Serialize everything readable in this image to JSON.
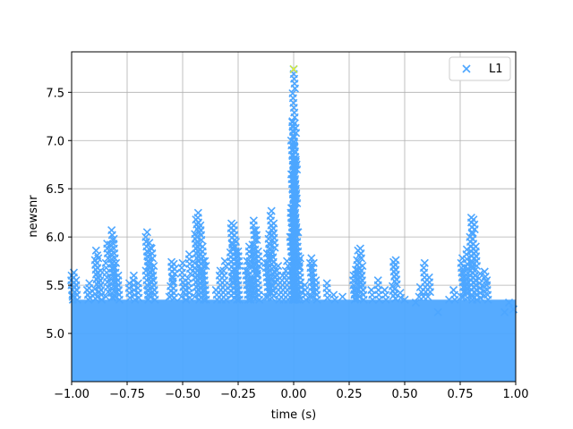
{
  "chart_data": {
    "type": "scatter",
    "xlabel": "time (s)",
    "ylabel": "newsnr",
    "xlim": [
      -1.0,
      1.0
    ],
    "ylim": [
      4.5,
      7.92
    ],
    "xticks": [
      "−1.00",
      "−0.75",
      "−0.50",
      "−0.25",
      "0.00",
      "0.25",
      "0.50",
      "0.75",
      "1.00"
    ],
    "xtick_values": [
      -1.0,
      -0.75,
      -0.5,
      -0.25,
      0.0,
      0.25,
      0.5,
      0.75,
      1.0
    ],
    "yticks": [
      "5.0",
      "5.5",
      "6.0",
      "6.5",
      "7.0",
      "7.5"
    ],
    "ytick_values": [
      5.0,
      5.5,
      6.0,
      6.5,
      7.0,
      7.5
    ],
    "grid": true,
    "legend": {
      "position": "top-right",
      "entries": [
        "L1"
      ]
    },
    "colors": {
      "series": "#4da6ff",
      "highlight": "#ffff00"
    },
    "series": [
      {
        "name": "L1",
        "marker": "x",
        "band": {
          "x_range": [
            -1.0,
            1.0
          ],
          "y_range": [
            4.5,
            5.35
          ]
        },
        "values": [
          [
            -1.0,
            5.6
          ],
          [
            -0.99,
            5.63
          ],
          [
            -0.98,
            5.55
          ],
          [
            -0.93,
            5.45
          ],
          [
            -0.92,
            5.52
          ],
          [
            -0.89,
            5.86
          ],
          [
            -0.88,
            5.78
          ],
          [
            -0.87,
            5.65
          ],
          [
            -0.84,
            5.93
          ],
          [
            -0.82,
            6.07
          ],
          [
            -0.81,
            5.98
          ],
          [
            -0.8,
            5.73
          ],
          [
            -0.79,
            5.6
          ],
          [
            -0.74,
            5.52
          ],
          [
            -0.72,
            5.6
          ],
          [
            -0.7,
            5.52
          ],
          [
            -0.66,
            6.05
          ],
          [
            -0.65,
            5.94
          ],
          [
            -0.64,
            5.88
          ],
          [
            -0.63,
            5.7
          ],
          [
            -0.56,
            5.38
          ],
          [
            -0.55,
            5.74
          ],
          [
            -0.54,
            5.72
          ],
          [
            -0.5,
            5.73
          ],
          [
            -0.49,
            5.5
          ],
          [
            -0.47,
            5.82
          ],
          [
            -0.44,
            6.18
          ],
          [
            -0.43,
            6.25
          ],
          [
            -0.42,
            6.12
          ],
          [
            -0.41,
            5.9
          ],
          [
            -0.4,
            5.75
          ],
          [
            -0.35,
            5.45
          ],
          [
            -0.33,
            5.65
          ],
          [
            -0.31,
            5.75
          ],
          [
            -0.28,
            6.14
          ],
          [
            -0.27,
            6.12
          ],
          [
            -0.26,
            5.95
          ],
          [
            -0.25,
            5.85
          ],
          [
            -0.21,
            5.75
          ],
          [
            -0.2,
            5.9
          ],
          [
            -0.18,
            6.17
          ],
          [
            -0.17,
            6.07
          ],
          [
            -0.16,
            5.85
          ],
          [
            -0.12,
            5.83
          ],
          [
            -0.11,
            6.03
          ],
          [
            -0.1,
            6.27
          ],
          [
            -0.09,
            6.14
          ],
          [
            -0.07,
            5.7
          ],
          [
            -0.05,
            5.6
          ],
          [
            -0.03,
            5.75
          ],
          [
            -0.01,
            6.3
          ],
          [
            0.0,
            6.95
          ],
          [
            0.005,
            7.18
          ],
          [
            -0.005,
            7.2
          ],
          [
            0.01,
            6.8
          ],
          [
            0.0,
            6.55
          ],
          [
            0.02,
            6.05
          ],
          [
            0.03,
            5.78
          ],
          [
            0.05,
            5.5
          ],
          [
            0.08,
            5.78
          ],
          [
            0.09,
            5.73
          ],
          [
            0.1,
            5.55
          ],
          [
            0.15,
            5.52
          ],
          [
            0.18,
            5.4
          ],
          [
            0.22,
            5.38
          ],
          [
            0.27,
            5.6
          ],
          [
            0.28,
            5.66
          ],
          [
            0.29,
            5.86
          ],
          [
            0.3,
            5.88
          ],
          [
            0.31,
            5.7
          ],
          [
            0.35,
            5.45
          ],
          [
            0.38,
            5.55
          ],
          [
            0.41,
            5.45
          ],
          [
            0.45,
            5.74
          ],
          [
            0.46,
            5.76
          ],
          [
            0.48,
            5.42
          ],
          [
            0.5,
            5.35
          ],
          [
            0.55,
            5.32
          ],
          [
            0.57,
            5.48
          ],
          [
            0.59,
            5.73
          ],
          [
            0.61,
            5.58
          ],
          [
            0.65,
            5.22
          ],
          [
            0.7,
            5.35
          ],
          [
            0.72,
            5.45
          ],
          [
            0.76,
            5.78
          ],
          [
            0.77,
            5.68
          ],
          [
            0.78,
            5.87
          ],
          [
            0.8,
            6.2
          ],
          [
            0.81,
            6.18
          ],
          [
            0.82,
            5.9
          ],
          [
            0.84,
            5.62
          ],
          [
            0.86,
            5.64
          ],
          [
            0.87,
            5.55
          ],
          [
            0.95,
            5.22
          ],
          [
            0.97,
            5.32
          ],
          [
            0.99,
            5.25
          ],
          [
            0.0,
            7.74
          ]
        ]
      }
    ],
    "highlight_point": [
      0.0,
      7.74
    ]
  }
}
